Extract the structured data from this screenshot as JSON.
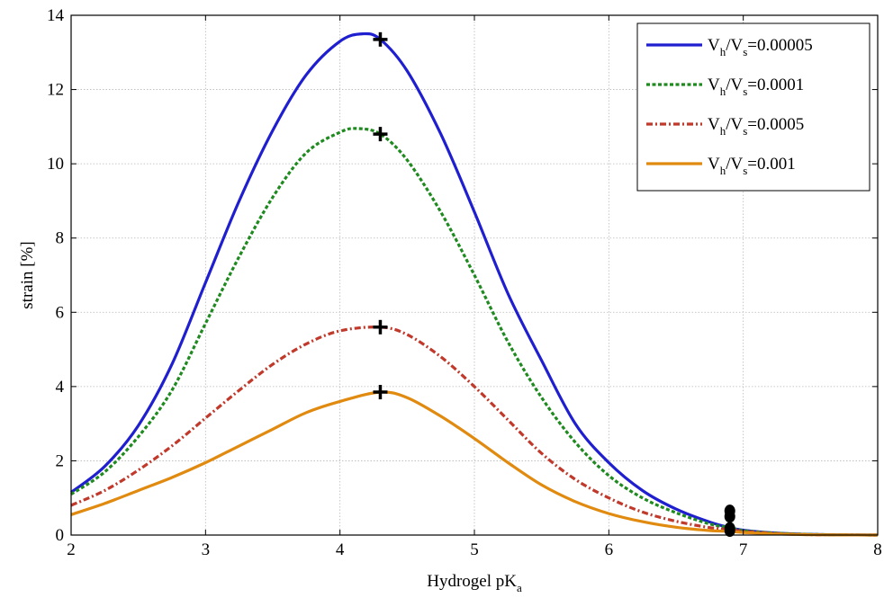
{
  "chart_data": {
    "type": "line",
    "xlabel": "Hydrogel pK",
    "xlabel_sub": "a",
    "ylabel": "strain [%]",
    "xlim": [
      2,
      8
    ],
    "ylim": [
      0,
      14
    ],
    "x_ticks": [
      2,
      3,
      4,
      5,
      6,
      7,
      8
    ],
    "y_ticks": [
      0,
      2,
      4,
      6,
      8,
      10,
      12,
      14
    ],
    "grid": true,
    "legend_position": "top-right",
    "series": [
      {
        "name_prefix": "V",
        "name_sub1": "h",
        "name_mid": "/V",
        "name_sub2": "s",
        "name_value": "=0.00005",
        "color": "#1f1fd0",
        "style": "solid",
        "x": [
          2,
          2.25,
          2.5,
          2.75,
          3,
          3.25,
          3.5,
          3.75,
          4,
          4.17,
          4.3,
          4.5,
          4.75,
          5,
          5.25,
          5.5,
          5.75,
          6,
          6.25,
          6.5,
          6.75,
          6.9,
          7,
          7.25,
          7.5,
          7.75,
          8
        ],
        "y": [
          1.15,
          1.85,
          2.95,
          4.6,
          6.8,
          9.0,
          10.9,
          12.4,
          13.3,
          13.5,
          13.35,
          12.5,
          10.8,
          8.7,
          6.5,
          4.7,
          3.0,
          1.95,
          1.2,
          0.7,
          0.35,
          0.2,
          0.13,
          0.05,
          0.02,
          0.005,
          0.0
        ]
      },
      {
        "name_prefix": "V",
        "name_sub1": "h",
        "name_mid": "/V",
        "name_sub2": "s",
        "name_value": "=0.0001",
        "color": "#1f8a1f",
        "style": "dotted",
        "x": [
          2,
          2.25,
          2.5,
          2.75,
          3,
          3.25,
          3.5,
          3.75,
          4,
          4.13,
          4.3,
          4.5,
          4.75,
          5,
          5.25,
          5.5,
          5.75,
          6,
          6.25,
          6.5,
          6.75,
          6.9,
          7,
          7.25,
          7.5,
          7.75,
          8
        ],
        "y": [
          1.1,
          1.7,
          2.65,
          3.9,
          5.7,
          7.5,
          9.1,
          10.3,
          10.85,
          10.95,
          10.8,
          10.1,
          8.7,
          7.0,
          5.2,
          3.7,
          2.5,
          1.6,
          1.0,
          0.6,
          0.3,
          0.2,
          0.12,
          0.05,
          0.02,
          0.005,
          0.0
        ]
      },
      {
        "name_prefix": "V",
        "name_sub1": "h",
        "name_mid": "/V",
        "name_sub2": "s",
        "name_value": "=0.0005",
        "color": "#c0392b",
        "style": "dashdot",
        "x": [
          2,
          2.25,
          2.5,
          2.75,
          3,
          3.25,
          3.5,
          3.75,
          4,
          4.3,
          4.5,
          4.75,
          5,
          5.25,
          5.5,
          5.75,
          6,
          6.25,
          6.5,
          6.75,
          6.9,
          7,
          7.25,
          7.5,
          7.75,
          8
        ],
        "y": [
          0.8,
          1.2,
          1.75,
          2.4,
          3.15,
          3.9,
          4.6,
          5.15,
          5.5,
          5.6,
          5.4,
          4.8,
          4.0,
          3.1,
          2.2,
          1.5,
          1.0,
          0.62,
          0.37,
          0.2,
          0.15,
          0.1,
          0.04,
          0.01,
          0.003,
          0.0
        ]
      },
      {
        "name_prefix": "V",
        "name_sub1": "h",
        "name_mid": "/V",
        "name_sub2": "s",
        "name_value": "=0.001",
        "color": "#e08a10",
        "style": "solid",
        "x": [
          2,
          2.25,
          2.5,
          2.75,
          3,
          3.25,
          3.5,
          3.75,
          4,
          4.3,
          4.5,
          4.75,
          5,
          5.25,
          5.5,
          5.75,
          6,
          6.25,
          6.5,
          6.75,
          6.9,
          7,
          7.25,
          7.5,
          7.75,
          8
        ],
        "y": [
          0.55,
          0.85,
          1.2,
          1.55,
          1.95,
          2.4,
          2.85,
          3.3,
          3.6,
          3.85,
          3.7,
          3.2,
          2.6,
          1.95,
          1.35,
          0.9,
          0.58,
          0.36,
          0.21,
          0.12,
          0.1,
          0.07,
          0.03,
          0.01,
          0.003,
          0.0
        ]
      }
    ],
    "markers_plus": [
      {
        "x": 4.3,
        "y": 13.35
      },
      {
        "x": 4.3,
        "y": 10.8
      },
      {
        "x": 4.3,
        "y": 5.6
      },
      {
        "x": 4.3,
        "y": 3.85
      }
    ],
    "markers_dot": [
      {
        "x": 6.9,
        "y": 0.65
      },
      {
        "x": 6.9,
        "y": 0.5
      },
      {
        "x": 6.9,
        "y": 0.18
      },
      {
        "x": 6.9,
        "y": 0.12
      }
    ]
  }
}
